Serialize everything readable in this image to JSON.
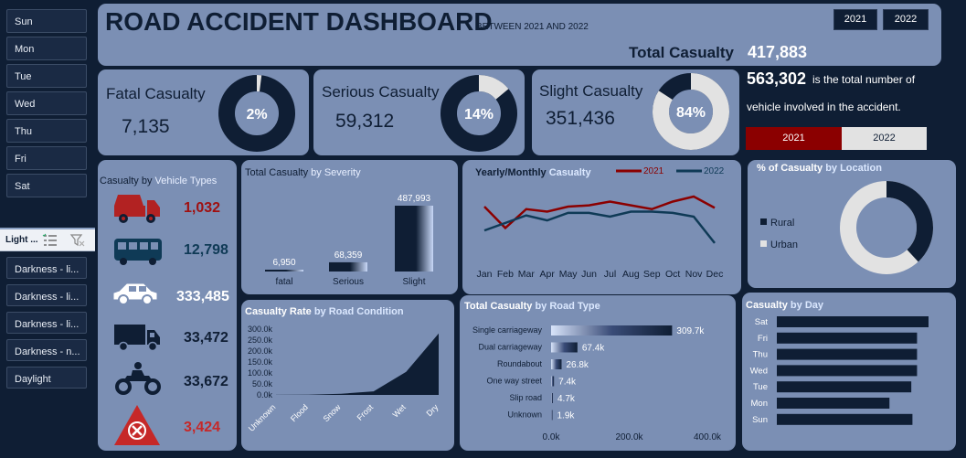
{
  "days": [
    "Sun",
    "Mon",
    "Tue",
    "Wed",
    "Thu",
    "Fri",
    "Sat"
  ],
  "light_slicer": {
    "title": "Light ...",
    "items": [
      "Darkness - li...",
      "Darkness - li...",
      "Darkness - li...",
      "Darkness - n...",
      "Daylight"
    ]
  },
  "header": {
    "title": "ROAD ACCIDENT DASHBOARD",
    "subtitle": "BETWEEN 2021 AND 2022",
    "year_buttons": [
      "2021",
      "2022"
    ],
    "total_label": "Total Casualty",
    "total_value": "417,883"
  },
  "kpis": [
    {
      "label": "Fatal Casualty",
      "value": "7,135",
      "pct_text": "2%",
      "pct": 0.02
    },
    {
      "label": "Serious Casualty",
      "value": "59,312",
      "pct_text": "14%",
      "pct": 0.14
    },
    {
      "label": "Slight Casualty",
      "value": "351,436",
      "pct_text": "84%",
      "pct": 0.84
    }
  ],
  "vehicles_info": {
    "value": "563,302",
    "text1": "is the total number of",
    "text2": "vehicle involved in the accident.",
    "legend": [
      "2021",
      "2022"
    ]
  },
  "vehicle_panel": {
    "title_a": "Casualty by ",
    "title_b": "Vehicle Types",
    "values": [
      "1,032",
      "12,798",
      "333,485",
      "33,472",
      "33,672",
      "3,424"
    ]
  },
  "colors": {
    "dark": "#0f1e34",
    "red": "#8b0000",
    "panel": "#7b8fb4",
    "light": "#e2e2e2"
  },
  "chart_data": [
    {
      "type": "bar",
      "title": "Total Casualty by Severity",
      "categories": [
        "fatal",
        "Serious",
        "Slight"
      ],
      "values": [
        6950,
        68359,
        487993
      ],
      "data_labels": [
        "6,950",
        "68,359",
        "487,993"
      ]
    },
    {
      "type": "line",
      "title": "Yearly/Monthly Casualty",
      "categories": [
        "Jan",
        "Feb",
        "Mar",
        "Apr",
        "May",
        "Jun",
        "Jul",
        "Aug",
        "Sep",
        "Oct",
        "Nov",
        "Dec"
      ],
      "series": [
        {
          "name": "2021",
          "values": [
            17200,
            15500,
            17000,
            16800,
            17200,
            17300,
            17600,
            17300,
            17000,
            17600,
            18000,
            17100
          ]
        },
        {
          "name": "2022",
          "values": [
            15300,
            15900,
            16500,
            16100,
            16700,
            16700,
            16400,
            16800,
            16800,
            16700,
            16400,
            14300
          ]
        }
      ],
      "legend": "top-right"
    },
    {
      "type": "pie",
      "title": "% of Casualty by Location",
      "categories": [
        "Rural",
        "Urban"
      ],
      "values": [
        38,
        62
      ]
    },
    {
      "type": "area",
      "title": "Casualty Rate by Road Condition",
      "categories": [
        "Unknown",
        "Flood",
        "Snow",
        "Frost",
        "Wet",
        "Dry"
      ],
      "values": [
        700,
        1200,
        5300,
        16000,
        105000,
        280000
      ],
      "y_ticks": [
        "300.0k",
        "250.0k",
        "200.0k",
        "150.0k",
        "100.0k",
        "50.0k",
        "0.0k"
      ],
      "ylim": [
        0,
        300000
      ]
    },
    {
      "type": "bar",
      "title": "Total Casualty by Road Type",
      "categories": [
        "Single carriageway",
        "Dual carriageway",
        "Roundabout",
        "One way street",
        "Slip road",
        "Unknown"
      ],
      "values": [
        309700,
        67400,
        26800,
        7400,
        4700,
        1900
      ],
      "data_labels": [
        "309.7k",
        "67.4k",
        "26.8k",
        "7.4k",
        "4.7k",
        "1.9k"
      ],
      "x_ticks": [
        "0.0k",
        "200.0k",
        "400.0k"
      ],
      "xlim": [
        0,
        400000
      ]
    },
    {
      "type": "bar",
      "title": "Casualty by Day",
      "categories": [
        "Sat",
        "Fri",
        "Thu",
        "Wed",
        "Tue",
        "Mon",
        "Sun"
      ],
      "values": [
        66000,
        61000,
        61000,
        61000,
        58500,
        49000,
        59000
      ]
    }
  ]
}
